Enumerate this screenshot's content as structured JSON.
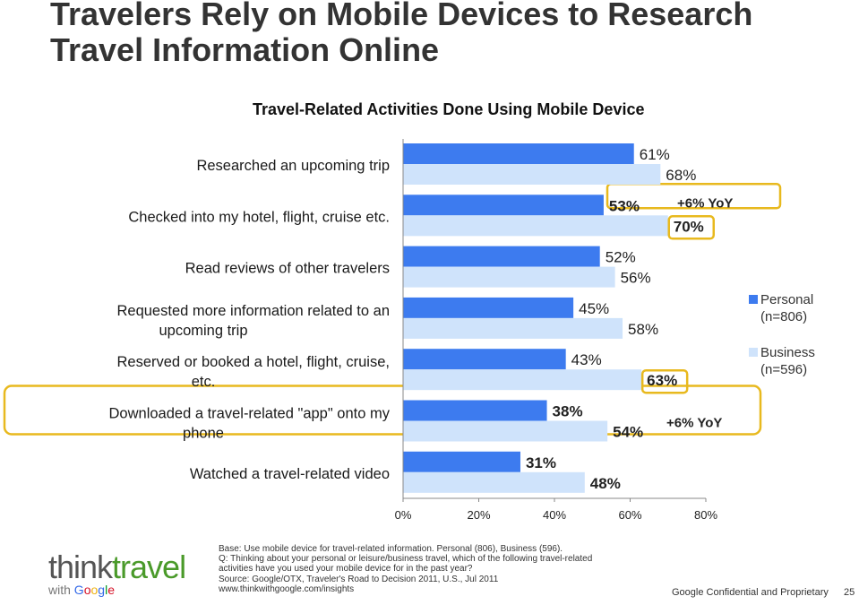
{
  "slide": {
    "title": "Travelers Rely on Mobile Devices to Research Travel Information Online",
    "confidential": "Google Confidential and Proprietary",
    "page_number": "25"
  },
  "chart_data": {
    "type": "bar",
    "orientation": "horizontal",
    "title": "Travel-Related Activities Done Using Mobile Device",
    "categories": [
      "Researched an upcoming trip",
      "Checked into my hotel, flight, cruise etc.",
      "Read reviews of other travelers",
      "Requested more information related to an upcoming trip",
      "Reserved or booked a hotel, flight, cruise, etc.",
      "Downloaded a travel-related \"app\"  onto my phone",
      "Watched a travel-related video"
    ],
    "series": [
      {
        "name": "Personal",
        "n": "(n=806)",
        "color": "#3d7bef",
        "values": [
          61,
          53,
          52,
          45,
          43,
          38,
          31
        ],
        "labels": [
          "61%",
          "53%",
          "52%",
          "45%",
          "43%",
          "38%",
          "31%"
        ]
      },
      {
        "name": "Business",
        "n": "(n=596)",
        "color": "#cfe3fb",
        "values": [
          68,
          70,
          56,
          58,
          63,
          54,
          48
        ],
        "labels": [
          "68%",
          "70%",
          "56%",
          "58%",
          "63%",
          "54%",
          "48%"
        ]
      }
    ],
    "xlim": [
      0,
      80
    ],
    "xticks": [
      "0%",
      "20%",
      "40%",
      "60%",
      "80%"
    ],
    "legend_position": "right",
    "annotations": [
      {
        "text": "+6% YoY",
        "category_index": 1
      },
      {
        "text": "+6% YoY",
        "category_index": 5
      }
    ],
    "highlight_color": "#e8b91e"
  },
  "footer": {
    "base": "Base:  Use mobile device for travel-related information. Personal (806), Business (596).",
    "question_1": "Q: Thinking about your personal or leisure/business travel, which of the following travel-related",
    "question_2": "activities have you used your mobile device for in the past year?",
    "source": "Source: Google/OTX, Traveler's Road to Decision 2011, U.S., Jul 2011",
    "url": "www.thinkwithgoogle.com/insights"
  },
  "logo": {
    "think": "think",
    "travel": "travel",
    "with": "with",
    "google": "Google"
  }
}
